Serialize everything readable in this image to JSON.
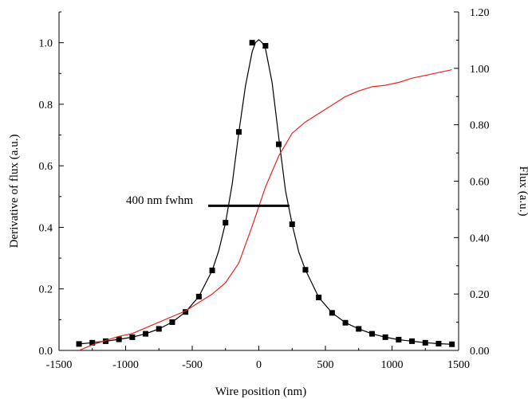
{
  "chart_data": {
    "type": "line",
    "title": "",
    "xlabel": "Wire position (nm)",
    "ylabel_left": "Derivative of flux (a.u.)",
    "ylabel_right": "Flux (a.u.)",
    "xlim": [
      -1500,
      1500
    ],
    "ylim_left": [
      0.0,
      1.1
    ],
    "ylim_right": [
      0.0,
      1.2
    ],
    "grid": false,
    "legend": "none",
    "x_ticks": [
      -1500,
      -1000,
      -500,
      0,
      500,
      1000,
      1500
    ],
    "x_tick_labels": [
      "-1500",
      "-1000",
      "-500",
      "0",
      "500",
      "1000",
      "1500"
    ],
    "y_left_ticks": [
      0.0,
      0.2,
      0.4,
      0.6,
      0.8,
      1.0
    ],
    "y_left_tick_labels": [
      "0.0",
      "0.2",
      "0.4",
      "0.6",
      "0.8",
      "1.0"
    ],
    "y_right_ticks": [
      0.0,
      0.2,
      0.4,
      0.6,
      0.8,
      1.0,
      1.2
    ],
    "y_right_tick_labels": [
      "0.00",
      "0.20",
      "0.40",
      "0.60",
      "0.80",
      "1.00",
      "1.20"
    ],
    "annotation": {
      "text": "400 nm fwhm",
      "bar_x": [
        -200,
        200
      ],
      "bar_y": 0.47
    },
    "series": [
      {
        "axis": "left",
        "style": "markers",
        "marker": "square",
        "color": "#000000",
        "x": [
          -1350,
          -1250,
          -1150,
          -1050,
          -950,
          -850,
          -750,
          -650,
          -550,
          -450,
          -350,
          -250,
          -150,
          -50,
          50,
          150,
          250,
          350,
          450,
          550,
          650,
          750,
          850,
          950,
          1050,
          1150,
          1250,
          1350,
          1450
        ],
        "y": [
          0.021,
          0.025,
          0.03,
          0.036,
          0.043,
          0.054,
          0.07,
          0.092,
          0.125,
          0.175,
          0.26,
          0.415,
          0.71,
          1.0,
          0.99,
          0.67,
          0.41,
          0.262,
          0.172,
          0.122,
          0.09,
          0.07,
          0.054,
          0.043,
          0.035,
          0.03,
          0.025,
          0.022,
          0.02
        ]
      },
      {
        "axis": "left",
        "style": "line",
        "color": "#000000",
        "x": [
          -1350,
          -1250,
          -1150,
          -1050,
          -950,
          -850,
          -750,
          -650,
          -550,
          -450,
          -350,
          -300,
          -250,
          -200,
          -150,
          -100,
          -50,
          -25,
          0,
          25,
          50,
          100,
          150,
          200,
          250,
          300,
          350,
          450,
          550,
          650,
          750,
          850,
          950,
          1050,
          1150,
          1250,
          1350,
          1450
        ],
        "y": [
          0.021,
          0.025,
          0.03,
          0.036,
          0.043,
          0.054,
          0.07,
          0.092,
          0.125,
          0.175,
          0.26,
          0.325,
          0.415,
          0.54,
          0.71,
          0.86,
          0.97,
          1.0,
          1.01,
          1.0,
          0.98,
          0.87,
          0.69,
          0.52,
          0.41,
          0.32,
          0.262,
          0.172,
          0.122,
          0.09,
          0.07,
          0.054,
          0.043,
          0.035,
          0.03,
          0.025,
          0.022,
          0.02
        ]
      },
      {
        "axis": "right",
        "style": "line",
        "color": "#e8241c",
        "x": [
          -1350,
          -1250,
          -1150,
          -1050,
          -950,
          -850,
          -750,
          -650,
          -550,
          -450,
          -350,
          -250,
          -150,
          -50,
          50,
          150,
          250,
          350,
          450,
          550,
          650,
          750,
          850,
          950,
          1050,
          1150,
          1250,
          1350,
          1450
        ],
        "y": [
          0.0,
          0.02,
          0.035,
          0.05,
          0.06,
          0.08,
          0.1,
          0.12,
          0.14,
          0.17,
          0.2,
          0.24,
          0.31,
          0.44,
          0.58,
          0.69,
          0.77,
          0.81,
          0.84,
          0.87,
          0.9,
          0.92,
          0.935,
          0.94,
          0.95,
          0.965,
          0.975,
          0.985,
          0.995
        ]
      }
    ]
  }
}
